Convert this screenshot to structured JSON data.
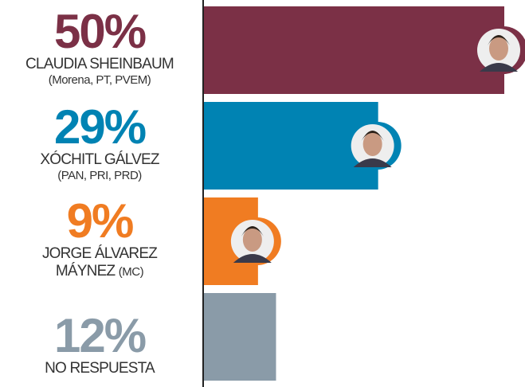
{
  "chart_data": {
    "type": "bar",
    "orientation": "horizontal",
    "categories": [
      "CLAUDIA SHEINBAUM",
      "XÓCHITL GÁLVEZ",
      "JORGE ÁLVAREZ MÁYNEZ",
      "NO RESPUESTA"
    ],
    "parties": [
      "(Morena, PT, PVEM)",
      "(PAN, PRI, PRD)",
      "(MC)",
      null
    ],
    "values": [
      50,
      29,
      9,
      12
    ],
    "value_labels": [
      "50%",
      "29%",
      "9%",
      "12%"
    ],
    "colors": [
      "#7b3046",
      "#0083b3",
      "#f07c22",
      "#8a9ba8"
    ]
  }
}
